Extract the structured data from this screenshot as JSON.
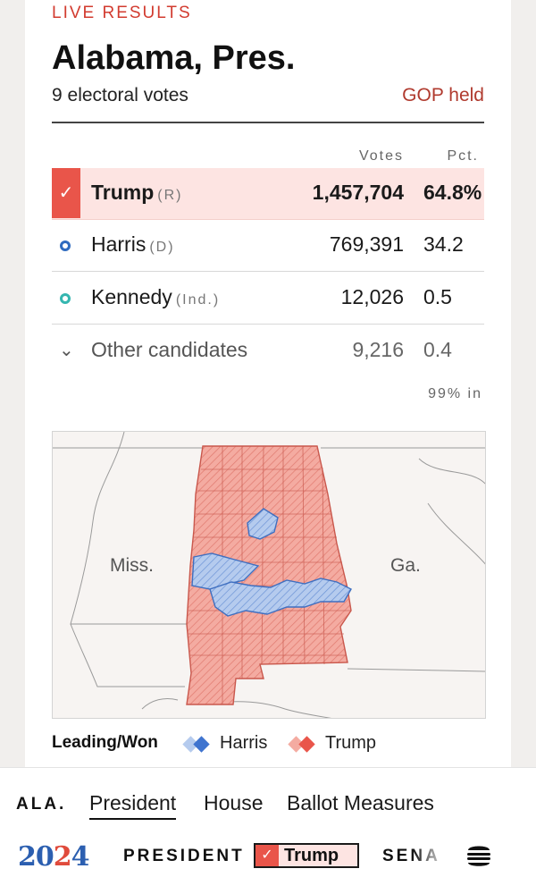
{
  "header": {
    "live_label": "LIVE RESULTS",
    "title": "Alabama, Pres.",
    "electoral_votes": "9 electoral votes",
    "held_status": "GOP held"
  },
  "table": {
    "col_votes": "Votes",
    "col_pct": "Pct.",
    "rows": [
      {
        "name": "Trump",
        "party": "(R)",
        "votes": "1,457,704",
        "pct": "64.8%",
        "winner": true
      },
      {
        "name": "Harris",
        "party": "(D)",
        "votes": "769,391",
        "pct": "34.2"
      },
      {
        "name": "Kennedy",
        "party": "(Ind.)",
        "votes": "12,026",
        "pct": "0.5"
      },
      {
        "name": "Other candidates",
        "votes": "9,216",
        "pct": "0.4"
      }
    ],
    "reporting": "99% in"
  },
  "map": {
    "label_west": "Miss.",
    "label_east": "Ga.",
    "colors": {
      "trump": "#f2a49a",
      "harris": "#a9c2ea",
      "trump_stroke": "#c9574c",
      "harris_stroke": "#3f6fc0"
    }
  },
  "legend": {
    "title": "Leading/Won",
    "harris": "Harris",
    "trump": "Trump"
  },
  "nav": {
    "state": "ALA.",
    "tabs": [
      "President",
      "House",
      "Ballot Measures"
    ],
    "active_tab": "President"
  },
  "footer": {
    "year_a": "20",
    "year_b": "2",
    "year_c": "4",
    "race": "PRESIDENT",
    "leader": "Trump",
    "next_race": "SENA"
  }
}
